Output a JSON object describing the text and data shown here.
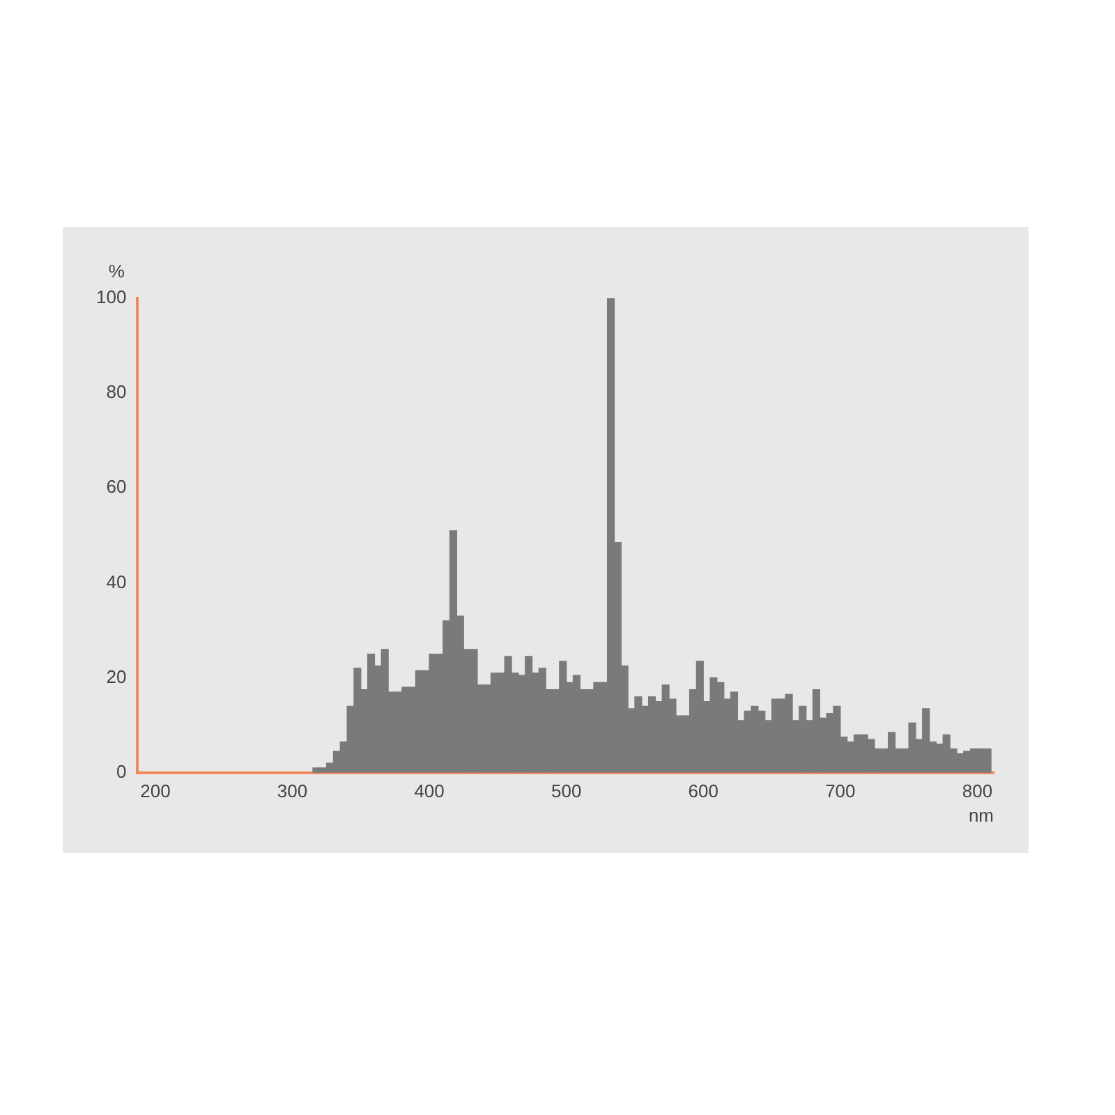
{
  "chart_data": {
    "type": "histogram",
    "xlabel": "nm",
    "ylabel": "%",
    "color": "#7a7a7a",
    "bins": [
      315,
      320,
      325,
      330,
      335,
      340,
      345,
      350,
      355,
      360,
      365,
      370,
      375,
      380,
      385,
      390,
      395,
      400,
      405,
      410,
      415,
      420,
      425,
      430,
      435,
      440,
      445,
      450,
      455,
      460,
      465,
      470,
      475,
      480,
      485,
      490,
      495,
      500,
      505,
      510,
      515,
      520,
      525,
      530,
      535,
      540,
      545,
      550,
      555,
      560,
      565,
      570,
      575,
      580,
      585,
      590,
      595,
      600,
      605,
      610,
      615,
      620,
      625,
      630,
      635,
      640,
      645,
      650,
      655,
      660,
      665,
      670,
      675,
      680,
      685,
      690,
      695,
      700,
      705,
      710,
      715,
      720,
      725,
      730,
      735,
      740,
      745,
      750,
      755,
      760,
      765,
      770,
      775,
      780,
      785,
      790,
      795,
      800,
      805,
      810
    ],
    "values": [
      1,
      1,
      2,
      4.5,
      6.5,
      14,
      22,
      17.5,
      25,
      22.5,
      26,
      17,
      17,
      18,
      18,
      21.5,
      21.5,
      25,
      25,
      32,
      51,
      33,
      26,
      26,
      18.5,
      18.5,
      21,
      21,
      24.5,
      21,
      20.5,
      24.5,
      21,
      22,
      17.5,
      17.5,
      23.5,
      19,
      20.5,
      17.5,
      17.5,
      19,
      19,
      100,
      48.5,
      22.5,
      13.5,
      16,
      14,
      16,
      15,
      18.5,
      15.5,
      12,
      12,
      17.5,
      23.5,
      15,
      20,
      19,
      15.5,
      17,
      11,
      13,
      14,
      13,
      11,
      15.5,
      15.5,
      16.5,
      11,
      14,
      11,
      17.5,
      11.5,
      12.5,
      14,
      7.5,
      6.5,
      8,
      8,
      7,
      5,
      5,
      8.5,
      5,
      5,
      10.5,
      7,
      13.5,
      6.5,
      6,
      8,
      5,
      4,
      4.5,
      5,
      5,
      5
    ],
    "xlim": [
      187,
      812
    ],
    "ylim": [
      0,
      100
    ],
    "xticks": [
      200,
      300,
      400,
      500,
      600,
      700,
      800
    ],
    "yticks": [
      0,
      20,
      40,
      60,
      80,
      100
    ],
    "grid": false,
    "legend": false
  }
}
